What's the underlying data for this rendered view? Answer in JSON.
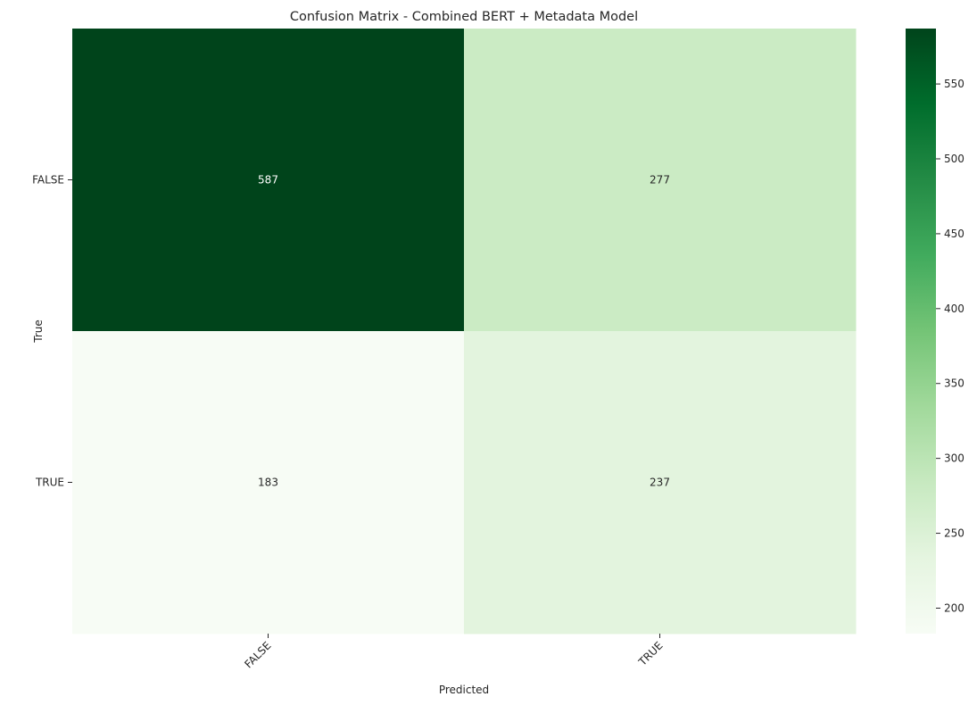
{
  "chart_data": {
    "type": "heatmap",
    "title": "Confusion Matrix - Combined BERT + Metadata Model",
    "xlabel": "Predicted",
    "ylabel": "True",
    "x_categories": [
      "FALSE",
      "TRUE"
    ],
    "y_categories": [
      "FALSE",
      "TRUE"
    ],
    "values": [
      [
        587,
        277
      ],
      [
        183,
        237
      ]
    ],
    "colormap": "Greens",
    "colorbar": {
      "range": [
        183,
        587
      ],
      "ticks": [
        200,
        250,
        300,
        350,
        400,
        450,
        500,
        550
      ]
    },
    "x_tick_rotation": 45,
    "grid": false
  }
}
